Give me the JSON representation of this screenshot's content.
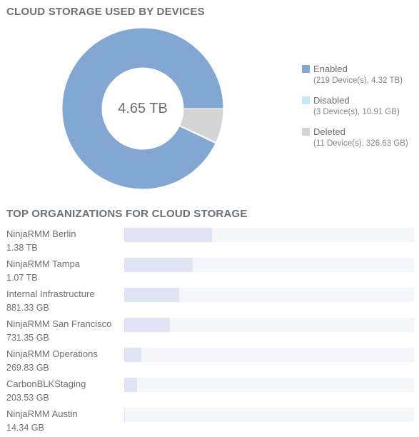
{
  "storage": {
    "title": "CLOUD STORAGE USED BY DEVICES",
    "total_label": "4.65 TB",
    "legend": [
      {
        "label": "Enabled",
        "detail": "(219 Device(s), 4.32 TB)",
        "color": "#82a7d3",
        "value_gb": 4423.68
      },
      {
        "label": "Disabled",
        "detail": "(3 Device(s), 10.91 GB)",
        "color": "#c3e7f6",
        "value_gb": 10.91
      },
      {
        "label": "Deleted",
        "detail": "(11 Device(s), 326.63 GB)",
        "color": "#d4d4d4",
        "value_gb": 326.63
      }
    ]
  },
  "orgs": {
    "title": "TOP ORGANIZATIONS FOR CLOUD STORAGE",
    "scale_max_gb": 4650,
    "items": [
      {
        "name": "NinjaRMM Berlin",
        "size": "1.38 TB",
        "value_gb": 1413.12
      },
      {
        "name": "NinjaRMM Tampa",
        "size": "1.07 TB",
        "value_gb": 1095.68
      },
      {
        "name": "Internal Infrastructure",
        "size": "881.33 GB",
        "value_gb": 881.33
      },
      {
        "name": "NinjaRMM San Francisco",
        "size": "731.35 GB",
        "value_gb": 731.35
      },
      {
        "name": "NinjaRMM Operations",
        "size": "269.83 GB",
        "value_gb": 269.83
      },
      {
        "name": "CarbonBLKStaging",
        "size": "203.53 GB",
        "value_gb": 203.53
      },
      {
        "name": "NinjaRMM Austin",
        "size": "14.34 GB",
        "value_gb": 14.34
      }
    ]
  }
}
